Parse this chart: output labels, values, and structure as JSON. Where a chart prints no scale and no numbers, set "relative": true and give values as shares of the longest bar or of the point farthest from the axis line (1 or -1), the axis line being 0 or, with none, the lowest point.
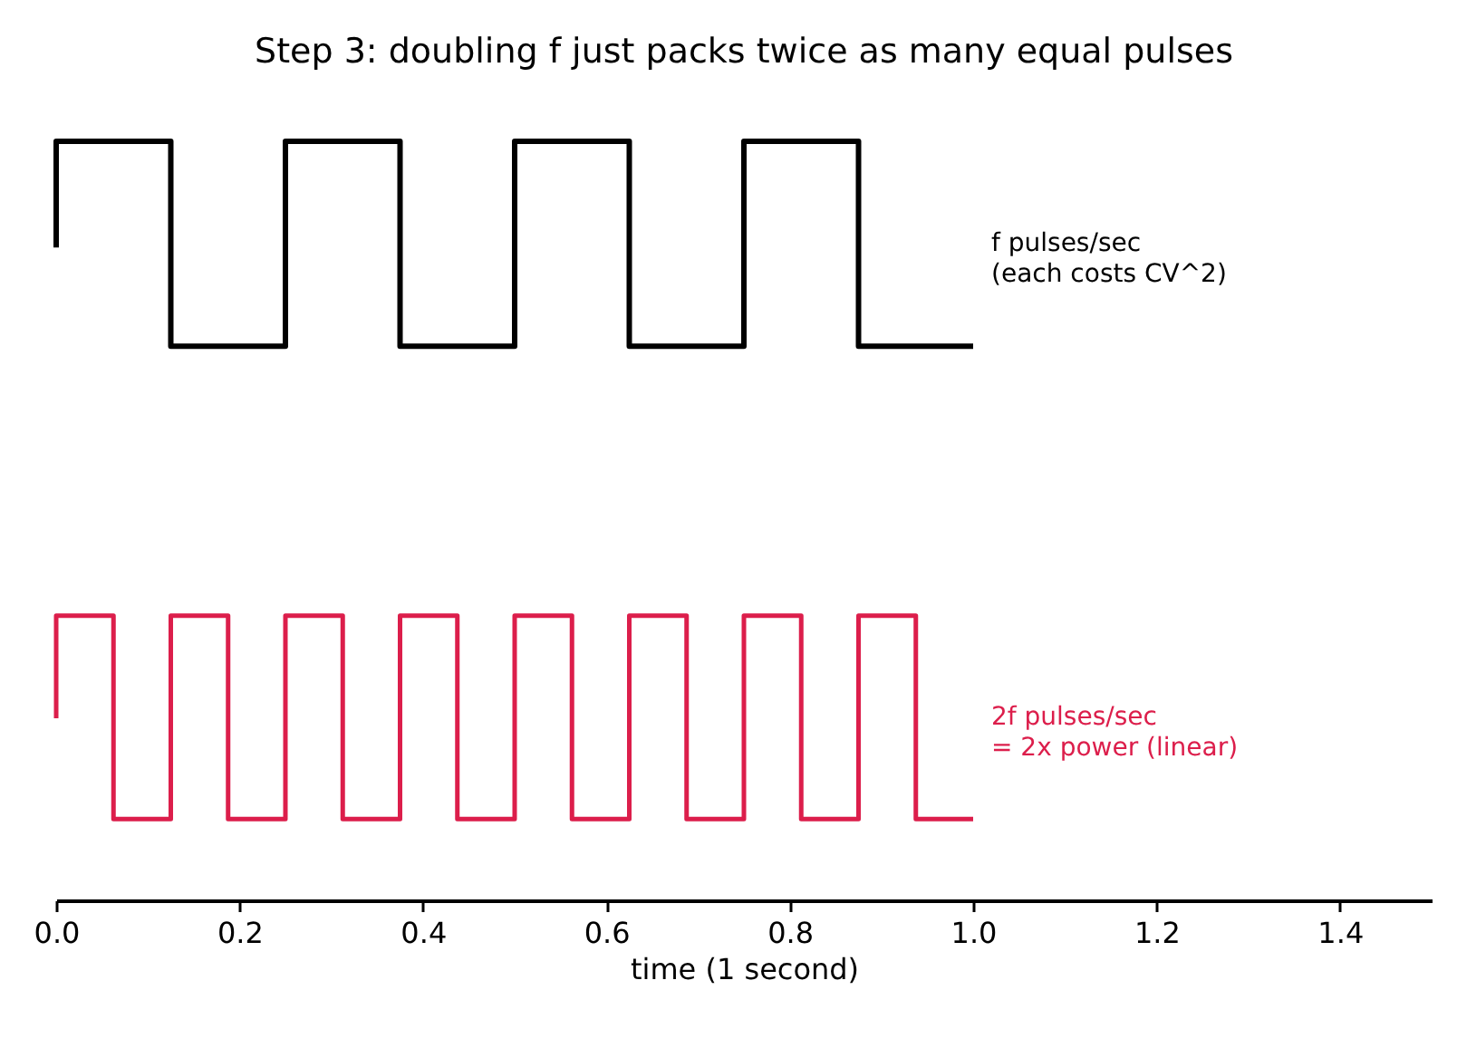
{
  "chart_data": {
    "type": "line",
    "title": "Step 3: doubling f just packs twice as many equal pulses",
    "xlabel": "time (1 second)",
    "relative": true,
    "grid": false,
    "legend": false,
    "xlim": [
      0,
      1.5
    ],
    "xticks": [
      {
        "value": 0,
        "label": "0.0"
      },
      {
        "value": 0.2,
        "label": "0.2"
      },
      {
        "value": 0.4,
        "label": "0.4"
      },
      {
        "value": 0.6,
        "label": "0.6"
      },
      {
        "value": 0.8,
        "label": "0.8"
      },
      {
        "value": 1,
        "label": "1.0"
      },
      {
        "value": 1.2,
        "label": "1.2"
      },
      {
        "value": 1.4,
        "label": "1.4"
      }
    ],
    "series": [
      {
        "name": "f pulses/sec\n(each costs CV^2)",
        "color": "#000000",
        "x": [
          0,
          0,
          0.125,
          0.125,
          0.25,
          0.25,
          0.375,
          0.375,
          0.5,
          0.5,
          0.625,
          0.625,
          0.75,
          0.75,
          0.875,
          0.875,
          1.0
        ],
        "values": [
          0.86,
          1,
          1,
          0.73,
          0.73,
          1,
          1,
          0.73,
          0.73,
          1,
          1,
          0.73,
          0.73,
          1,
          1,
          0.73,
          0.73
        ]
      },
      {
        "name": "2f pulses/sec\n= 2x power (linear)",
        "color": "#dc1e4b",
        "x": [
          0,
          0,
          0.0625,
          0.0625,
          0.125,
          0.125,
          0.1875,
          0.1875,
          0.25,
          0.25,
          0.3125,
          0.3125,
          0.375,
          0.375,
          0.4375,
          0.4375,
          0.5,
          0.5,
          0.5625,
          0.5625,
          0.625,
          0.625,
          0.6875,
          0.6875,
          0.75,
          0.75,
          0.8125,
          0.8125,
          0.875,
          0.875,
          0.9375,
          0.9375,
          1.0
        ],
        "values": [
          0.24,
          0.375,
          0.375,
          0.107,
          0.107,
          0.375,
          0.375,
          0.107,
          0.107,
          0.375,
          0.375,
          0.107,
          0.107,
          0.375,
          0.375,
          0.107,
          0.107,
          0.375,
          0.375,
          0.107,
          0.107,
          0.375,
          0.375,
          0.107,
          0.107,
          0.375,
          0.375,
          0.107,
          0.107,
          0.375,
          0.375,
          0.107,
          0.107
        ]
      }
    ]
  }
}
